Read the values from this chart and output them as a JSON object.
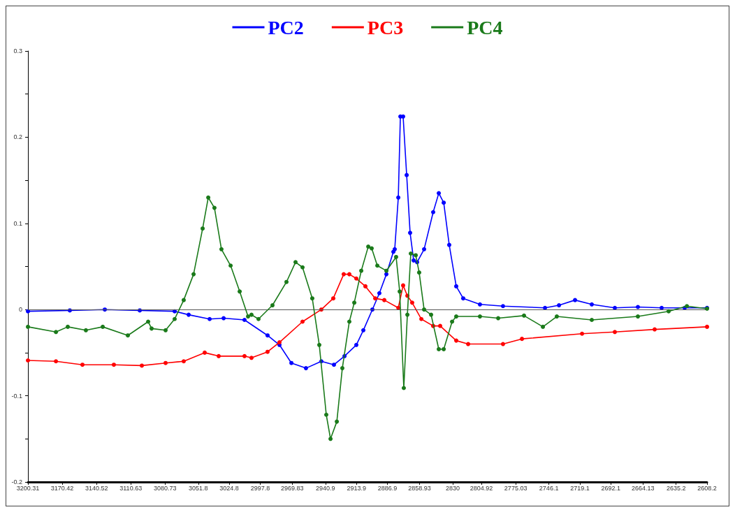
{
  "chart_data": {
    "type": "line",
    "marker": "circle",
    "line_style": "solid",
    "legend": "top",
    "grid": false,
    "xlim": [
      3200.31,
      2608.2
    ],
    "xticks": [
      3200.31,
      3170.42,
      3140.52,
      3110.63,
      3080.73,
      3051.8,
      3024.8,
      2997.8,
      2969.83,
      2940.9,
      2913.9,
      2886.9,
      2858.93,
      2830,
      2804.92,
      2775.03,
      2746.1,
      2719.1,
      2692.1,
      2664.13,
      2635.2,
      2608.2
    ],
    "ylim": [
      -0.2,
      0.3
    ],
    "yticks": [
      -0.2,
      {
        "value": -0.15,
        "label": null
      },
      -0.1,
      {
        "value": -0.05,
        "label": null
      },
      0,
      {
        "value": 0.05,
        "label": null
      },
      0.1,
      {
        "value": 0.15,
        "label": null
      },
      0.2,
      {
        "value": 0.25,
        "label": null
      },
      0.3
    ],
    "ref_lines": [
      {
        "axis": "y",
        "value": 0,
        "label": null,
        "color": "#555555"
      }
    ],
    "series": [
      {
        "name": "PC2",
        "color": "#0000ff",
        "x": [
          3200.3,
          3163.8,
          3133.3,
          3102.8,
          3072.4,
          3060.2,
          3041.9,
          3029.7,
          3011.5,
          2991.4,
          2981.0,
          2970.6,
          2957.9,
          2944.5,
          2933.5,
          2924.3,
          2914.0,
          2907.9,
          2900.0,
          2893.9,
          2887.8,
          2881.7,
          2880.5,
          2877.4,
          2875.6,
          2873.2,
          2870.1,
          2867.1,
          2864.0,
          2861.0,
          2854.9,
          2847.0,
          2842.1,
          2837.8,
          2833.0,
          2826.9,
          2820.8,
          2806.2,
          2786.1,
          2749.5,
          2737.3,
          2723.3,
          2708.7,
          2688.6,
          2668.5,
          2647.8,
          2627.7,
          2608.2
        ],
        "values": [
          -0.002,
          -0.001,
          0,
          -0.001,
          -0.002,
          -0.006,
          -0.011,
          -0.01,
          -0.012,
          -0.03,
          -0.041,
          -0.062,
          -0.068,
          -0.06,
          -0.064,
          -0.054,
          -0.041,
          -0.024,
          0.0,
          0.019,
          0.041,
          0.067,
          0.07,
          0.13,
          0.224,
          0.224,
          0.156,
          0.089,
          0.057,
          0.055,
          0.07,
          0.113,
          0.135,
          0.124,
          0.075,
          0.027,
          0.013,
          0.006,
          0.004,
          0.002,
          0.005,
          0.011,
          0.006,
          0.002,
          0.003,
          0.002,
          0.002,
          0.002
        ]
      },
      {
        "name": "PC3",
        "color": "#ff0000",
        "x": [
          3200.3,
          3175.9,
          3152.8,
          3125.4,
          3101.0,
          3080.3,
          3064.5,
          3046.2,
          3034.0,
          3011.5,
          3005.4,
          2991.4,
          2981.0,
          2960.9,
          2944.5,
          2934.1,
          2925.0,
          2920.1,
          2914.0,
          2906.1,
          2897.5,
          2889.6,
          2877.4,
          2873.2,
          2869.5,
          2865.3,
          2857.3,
          2847.0,
          2840.9,
          2826.9,
          2816.5,
          2786.1,
          2769.6,
          2717.2,
          2688.6,
          2653.9,
          2608.2
        ],
        "values": [
          -0.059,
          -0.06,
          -0.064,
          -0.064,
          -0.065,
          -0.062,
          -0.06,
          -0.05,
          -0.054,
          -0.054,
          -0.056,
          -0.049,
          -0.038,
          -0.014,
          0.0,
          0.013,
          0.041,
          0.041,
          0.036,
          0.027,
          0.013,
          0.011,
          0.002,
          0.028,
          0.016,
          0.008,
          -0.011,
          -0.019,
          -0.019,
          -0.036,
          -0.04,
          -0.04,
          -0.034,
          -0.028,
          -0.026,
          -0.023,
          -0.02
        ]
      },
      {
        "name": "PC4",
        "color": "#1a7a1a",
        "x": [
          3200.3,
          3175.9,
          3165.6,
          3149.8,
          3135.1,
          3113.2,
          3095.5,
          3092.5,
          3080.3,
          3072.4,
          3064.5,
          3055.9,
          3048.0,
          3043.1,
          3037.7,
          3031.6,
          3023.6,
          3015.7,
          3008.4,
          3005.4,
          2999.3,
          2987.1,
          2974.9,
          2967.0,
          2960.9,
          2952.4,
          2946.3,
          2940.2,
          2936.5,
          2931.0,
          2926.2,
          2920.1,
          2915.8,
          2909.7,
          2903.6,
          2900.6,
          2895.7,
          2887.8,
          2879.3,
          2876.2,
          2872.6,
          2869.5,
          2866.5,
          2862.2,
          2859.2,
          2854.9,
          2848.8,
          2842.1,
          2837.8,
          2830.5,
          2826.9,
          2806.2,
          2790.3,
          2767.8,
          2751.3,
          2739.2,
          2708.7,
          2668.5,
          2641.7,
          2625.8,
          2608.2
        ],
        "values": [
          -0.02,
          -0.026,
          -0.02,
          -0.024,
          -0.02,
          -0.03,
          -0.014,
          -0.022,
          -0.024,
          -0.011,
          0.011,
          0.041,
          0.094,
          0.13,
          0.118,
          0.07,
          0.051,
          0.021,
          -0.008,
          -0.006,
          -0.011,
          0.005,
          0.032,
          0.055,
          0.049,
          0.013,
          -0.041,
          -0.122,
          -0.15,
          -0.13,
          -0.068,
          -0.014,
          0.008,
          0.045,
          0.073,
          0.071,
          0.051,
          0.045,
          0.061,
          0.021,
          -0.091,
          -0.006,
          0.065,
          0.063,
          0.043,
          0.0,
          -0.006,
          -0.046,
          -0.046,
          -0.014,
          -0.008,
          -0.008,
          -0.01,
          -0.007,
          -0.02,
          -0.008,
          -0.012,
          -0.008,
          -0.002,
          0.004,
          0.001
        ]
      }
    ]
  }
}
